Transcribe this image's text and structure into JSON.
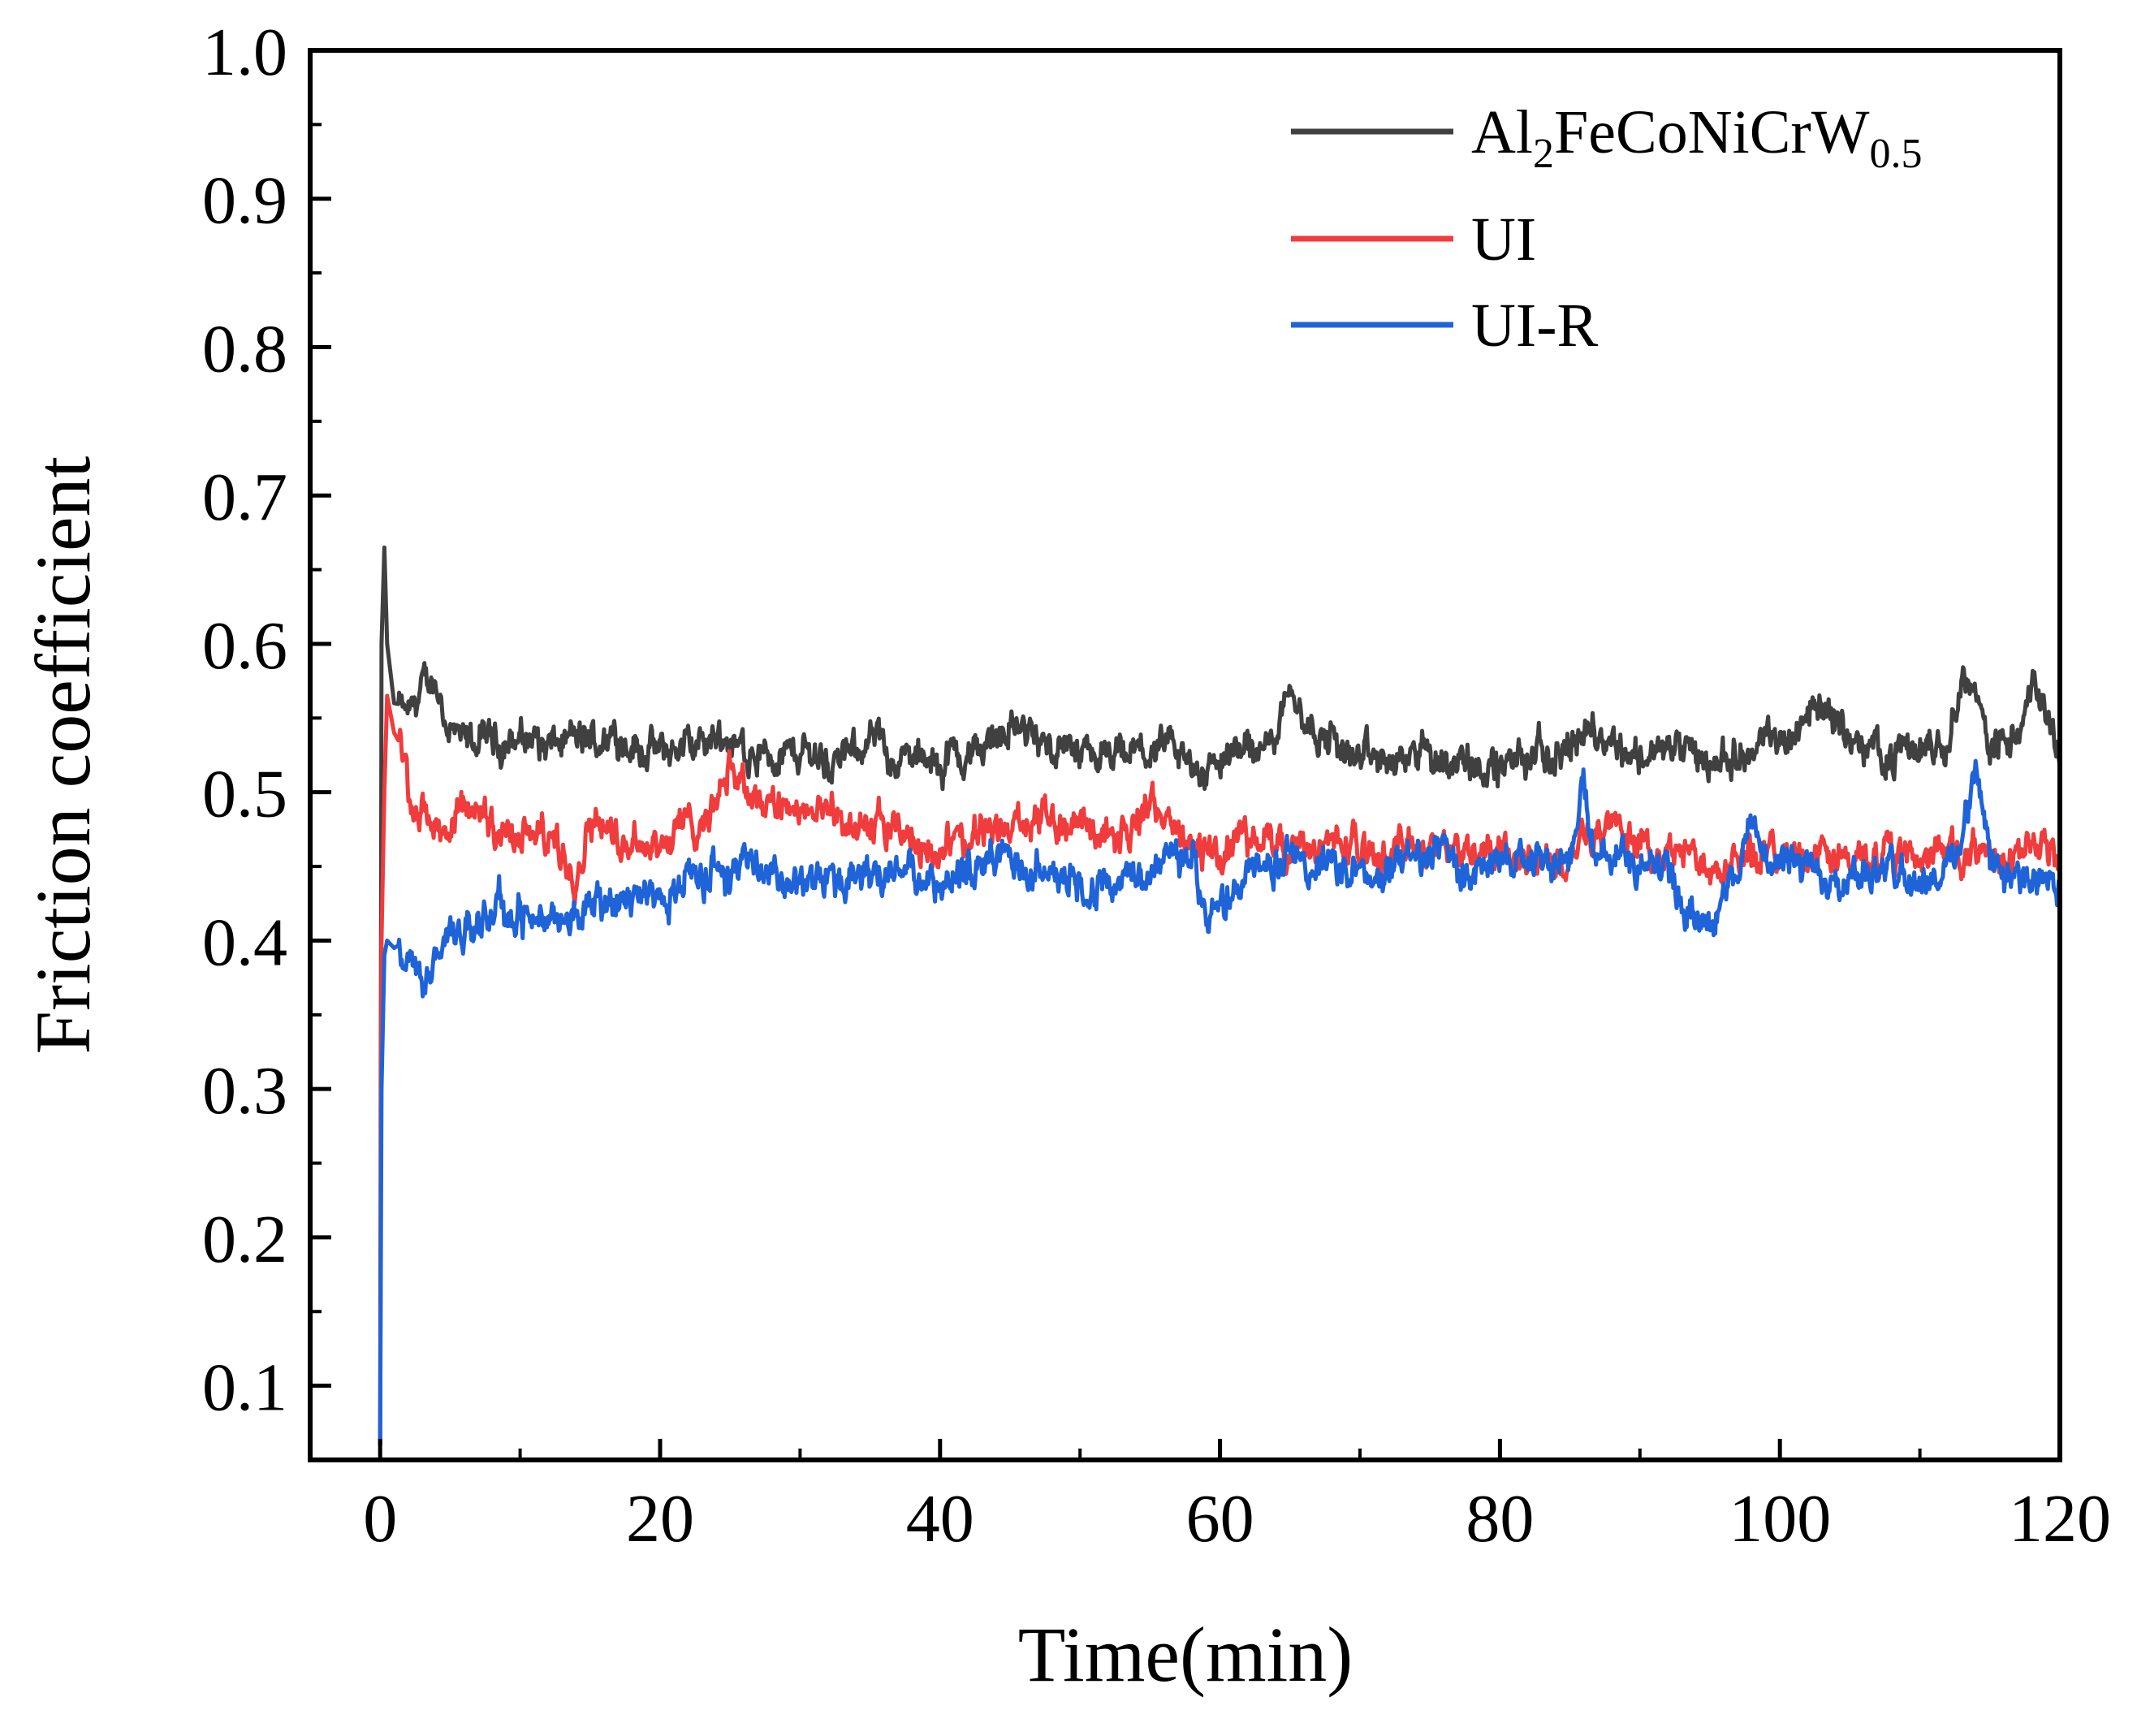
{
  "chart_data": {
    "type": "line",
    "title": "",
    "xlabel": "Time(min)",
    "ylabel": "Friction coefficient",
    "xlim": [
      -5,
      120
    ],
    "ylim": [
      0.05,
      1.0
    ],
    "x_ticks": [
      0,
      20,
      40,
      60,
      80,
      100,
      120
    ],
    "x_tick_labels": [
      "0",
      "20",
      "40",
      "60",
      "80",
      "100",
      "120"
    ],
    "y_ticks": [
      0.1,
      0.2,
      0.3,
      0.4,
      0.5,
      0.6,
      0.7,
      0.8,
      0.9,
      1.0
    ],
    "y_tick_labels": [
      "0.1",
      "0.2",
      "0.3",
      "0.4",
      "0.5",
      "0.6",
      "0.7",
      "0.8",
      "0.9",
      "1.0"
    ],
    "grid": false,
    "legend_position": "top-right",
    "series": [
      {
        "name": "Al2FeCoNiCrW0.5",
        "label_parts": {
          "base1": "Al",
          "sub1": "2",
          "base2": "FeCoNiCrW",
          "sub2": "0.5"
        },
        "color": "#404040",
        "x": [
          0,
          0.1,
          0.3,
          0.5,
          1,
          2,
          3,
          4,
          5,
          6,
          8,
          10,
          12,
          15,
          17,
          20,
          22,
          25,
          28,
          30,
          33,
          35,
          38,
          40,
          43,
          45,
          47,
          50,
          53,
          55,
          58,
          60,
          62,
          64,
          65,
          66,
          68,
          70,
          72,
          75,
          78,
          80,
          82,
          85,
          87,
          90,
          92,
          95,
          97,
          100,
          102,
          103,
          105,
          108,
          110,
          112,
          113,
          115,
          117,
          118,
          120
        ],
        "y": [
          0.06,
          0.6,
          0.665,
          0.6,
          0.56,
          0.55,
          0.575,
          0.57,
          0.545,
          0.535,
          0.535,
          0.54,
          0.53,
          0.535,
          0.54,
          0.525,
          0.53,
          0.535,
          0.525,
          0.52,
          0.525,
          0.535,
          0.52,
          0.52,
          0.53,
          0.545,
          0.535,
          0.52,
          0.515,
          0.525,
          0.515,
          0.52,
          0.53,
          0.54,
          0.585,
          0.545,
          0.535,
          0.525,
          0.52,
          0.525,
          0.525,
          0.52,
          0.525,
          0.535,
          0.54,
          0.525,
          0.53,
          0.525,
          0.525,
          0.535,
          0.555,
          0.565,
          0.535,
          0.525,
          0.53,
          0.54,
          0.575,
          0.54,
          0.53,
          0.57,
          0.53
        ]
      },
      {
        "name": "UI",
        "color": "#f03c3c",
        "x": [
          0,
          0.1,
          0.3,
          0.5,
          1,
          1.5,
          2,
          3,
          4,
          5,
          6,
          8,
          10,
          12,
          14,
          15,
          17,
          20,
          22,
          24,
          25,
          26,
          28,
          30,
          32,
          35,
          38,
          40,
          43,
          45,
          47,
          50,
          53,
          55,
          56,
          58,
          60,
          62,
          65,
          68,
          70,
          72,
          75,
          78,
          80,
          82,
          85,
          86,
          88,
          90,
          92,
          95,
          97,
          100,
          103,
          105,
          108,
          110,
          112,
          113,
          115,
          117,
          120
        ],
        "y": [
          0.06,
          0.4,
          0.5,
          0.565,
          0.54,
          0.53,
          0.5,
          0.49,
          0.48,
          0.47,
          0.49,
          0.48,
          0.47,
          0.465,
          0.455,
          0.49,
          0.47,
          0.47,
          0.48,
          0.49,
          0.52,
          0.505,
          0.49,
          0.485,
          0.48,
          0.475,
          0.465,
          0.465,
          0.47,
          0.475,
          0.48,
          0.48,
          0.475,
          0.49,
          0.485,
          0.465,
          0.46,
          0.47,
          0.465,
          0.47,
          0.46,
          0.46,
          0.465,
          0.46,
          0.455,
          0.455,
          0.46,
          0.475,
          0.48,
          0.465,
          0.46,
          0.45,
          0.455,
          0.46,
          0.455,
          0.455,
          0.455,
          0.46,
          0.465,
          0.46,
          0.455,
          0.46,
          0.455
        ]
      },
      {
        "name": "UI-R",
        "color": "#1f63d8",
        "x": [
          0,
          0.1,
          0.3,
          0.5,
          1,
          2,
          3,
          4,
          5,
          6,
          8,
          10,
          12,
          15,
          17,
          20,
          22,
          25,
          26,
          28,
          30,
          32,
          35,
          38,
          40,
          42,
          45,
          48,
          50,
          52,
          55,
          57,
          58,
          59,
          60,
          62,
          65,
          68,
          70,
          72,
          75,
          78,
          80,
          82,
          85,
          86,
          86.5,
          88,
          90,
          92,
          94,
          95,
          97,
          98,
          100,
          103,
          105,
          108,
          110,
          112,
          113,
          114,
          115,
          117,
          118,
          120
        ],
        "y": [
          0.06,
          0.3,
          0.39,
          0.4,
          0.395,
          0.385,
          0.375,
          0.38,
          0.4,
          0.41,
          0.42,
          0.415,
          0.41,
          0.42,
          0.425,
          0.43,
          0.44,
          0.445,
          0.46,
          0.445,
          0.44,
          0.445,
          0.445,
          0.45,
          0.44,
          0.445,
          0.45,
          0.445,
          0.44,
          0.44,
          0.45,
          0.465,
          0.465,
          0.41,
          0.42,
          0.44,
          0.455,
          0.45,
          0.445,
          0.45,
          0.46,
          0.45,
          0.455,
          0.455,
          0.46,
          0.52,
          0.47,
          0.46,
          0.455,
          0.445,
          0.415,
          0.42,
          0.445,
          0.48,
          0.45,
          0.445,
          0.45,
          0.445,
          0.445,
          0.45,
          0.47,
          0.515,
          0.45,
          0.45,
          0.44,
          0.43
        ]
      }
    ]
  }
}
